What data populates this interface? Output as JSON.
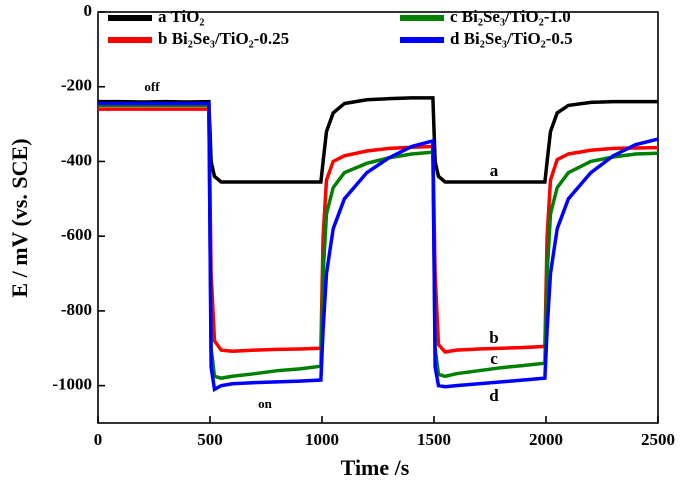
{
  "chart_data": {
    "type": "line",
    "x_label": "Time /s",
    "y_label": "E / mV (vs. SCE)",
    "x": [
      0,
      100,
      200,
      300,
      400,
      495,
      505,
      520,
      550,
      600,
      700,
      800,
      900,
      995,
      1005,
      1020,
      1050,
      1100,
      1200,
      1300,
      1400,
      1495,
      1505,
      1520,
      1550,
      1600,
      1700,
      1800,
      1900,
      1995,
      2005,
      2020,
      2050,
      2100,
      2200,
      2300,
      2400,
      2500
    ],
    "series": [
      {
        "name": "a  TiO₂",
        "color": "#000000",
        "values": [
          -240,
          -240,
          -241,
          -240,
          -241,
          -240,
          -400,
          -440,
          -455,
          -455,
          -455,
          -455,
          -455,
          -455,
          -400,
          -320,
          -270,
          -245,
          -235,
          -232,
          -230,
          -230,
          -400,
          -440,
          -455,
          -455,
          -455,
          -455,
          -455,
          -455,
          -400,
          -320,
          -270,
          -250,
          -242,
          -240,
          -240,
          -240
        ]
      },
      {
        "name": "b Bi₂Se₃/TiO₂-0.25",
        "color": "#ff0000",
        "values": [
          -260,
          -260,
          -260,
          -260,
          -260,
          -260,
          -700,
          -880,
          -905,
          -908,
          -905,
          -903,
          -902,
          -900,
          -600,
          -450,
          -400,
          -385,
          -372,
          -365,
          -362,
          -360,
          -700,
          -890,
          -910,
          -905,
          -902,
          -900,
          -898,
          -895,
          -600,
          -450,
          -395,
          -380,
          -370,
          -365,
          -364,
          -363
        ]
      },
      {
        "name": "c  Bi₂Se₃/TiO₂-1.0",
        "color": "#008000",
        "values": [
          -250,
          -250,
          -250,
          -250,
          -250,
          -250,
          -900,
          -975,
          -980,
          -975,
          -968,
          -960,
          -955,
          -948,
          -700,
          -540,
          -470,
          -430,
          -405,
          -390,
          -380,
          -375,
          -900,
          -970,
          -975,
          -968,
          -960,
          -952,
          -946,
          -940,
          -700,
          -540,
          -470,
          -430,
          -400,
          -388,
          -380,
          -378
        ]
      },
      {
        "name": "d  Bi₂Se₃/TiO₂-0.5",
        "color": "#0000ff",
        "values": [
          -245,
          -245,
          -245,
          -245,
          -245,
          -245,
          -950,
          -1010,
          -1000,
          -995,
          -992,
          -990,
          -988,
          -985,
          -850,
          -700,
          -580,
          -500,
          -430,
          -390,
          -360,
          -345,
          -950,
          -1000,
          -1003,
          -1000,
          -995,
          -990,
          -985,
          -980,
          -850,
          -700,
          -580,
          -500,
          -430,
          -385,
          -355,
          -340
        ]
      }
    ],
    "annotations": [
      "off",
      "on",
      "a",
      "b",
      "c",
      "d"
    ],
    "xlim": [
      0,
      2500
    ],
    "xticks": [
      0,
      500,
      1000,
      1500,
      2000,
      2500
    ],
    "ylim": [
      -1100,
      0
    ],
    "yticks": [
      0,
      -200,
      -400,
      -600,
      -800,
      -1000
    ]
  }
}
